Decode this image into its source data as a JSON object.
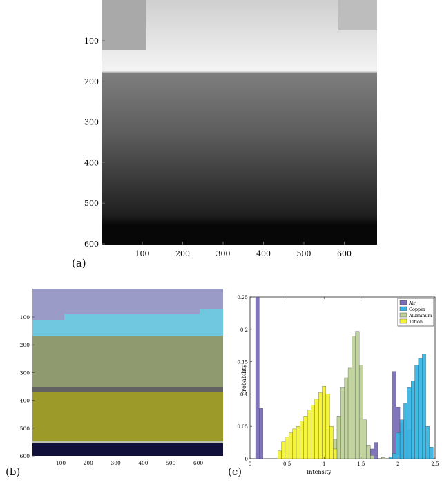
{
  "panel_a": {
    "label": "(a)",
    "y_ticks": [
      "100",
      "200",
      "300",
      "400",
      "500",
      "600"
    ],
    "x_ticks": [
      "100",
      "200",
      "300",
      "400",
      "500",
      "600"
    ]
  },
  "panel_b": {
    "label": "(b)",
    "y_ticks": [
      "100",
      "200",
      "300",
      "400",
      "500",
      "600"
    ],
    "x_ticks": [
      "100",
      "200",
      "300",
      "400",
      "500",
      "600"
    ],
    "colors": {
      "air": "#9b9bc8",
      "copper": "#6fc8e0",
      "aluminum": "#8f9a6e",
      "teflon": "#9c9a28",
      "dark_band": "#626262",
      "bottom": "#10103a"
    }
  },
  "panel_c": {
    "label": "(c)",
    "chart_data": {
      "type": "bar",
      "xlabel": "Intensity",
      "ylabel": "Probability",
      "xlim": [
        0,
        2.5
      ],
      "ylim": [
        0,
        0.25
      ],
      "x_ticks": [
        "0",
        "0.5",
        "1",
        "1.5",
        "2",
        "2.5"
      ],
      "y_ticks": [
        "0",
        "0.05",
        "0.1",
        "0.15",
        "0.2",
        "0.25"
      ],
      "legend_position": "top-right",
      "bin_width": 0.05,
      "series": [
        {
          "name": "Air",
          "color": "#7b6fb8",
          "bins": [
            [
              0.1,
              0.25
            ],
            [
              0.15,
              0.078
            ],
            [
              1.65,
              0.015
            ],
            [
              1.7,
              0.025
            ],
            [
              1.95,
              0.135
            ],
            [
              2.0,
              0.08
            ],
            [
              2.05,
              0.055
            ],
            [
              2.1,
              0.06
            ],
            [
              2.15,
              0.045
            ]
          ]
        },
        {
          "name": "Copper",
          "color": "#39b6e3",
          "bins": [
            [
              1.9,
              0.003
            ],
            [
              1.95,
              0.008
            ],
            [
              2.0,
              0.04
            ],
            [
              2.05,
              0.06
            ],
            [
              2.1,
              0.085
            ],
            [
              2.15,
              0.11
            ],
            [
              2.2,
              0.12
            ],
            [
              2.25,
              0.145
            ],
            [
              2.3,
              0.155
            ],
            [
              2.35,
              0.162
            ],
            [
              2.4,
              0.05
            ],
            [
              2.45,
              0.018
            ]
          ]
        },
        {
          "name": "Aluminum",
          "color": "#bfd39a",
          "bins": [
            [
              1.15,
              0.03
            ],
            [
              1.2,
              0.065
            ],
            [
              1.25,
              0.11
            ],
            [
              1.3,
              0.125
            ],
            [
              1.35,
              0.14
            ],
            [
              1.4,
              0.19
            ],
            [
              1.45,
              0.197
            ],
            [
              1.5,
              0.145
            ],
            [
              1.55,
              0.06
            ],
            [
              1.6,
              0.02
            ],
            [
              1.65,
              0.005
            ],
            [
              1.8,
              0.002
            ]
          ]
        },
        {
          "name": "Teflon",
          "color": "#f5f536",
          "bins": [
            [
              0.4,
              0.012
            ],
            [
              0.45,
              0.026
            ],
            [
              0.5,
              0.034
            ],
            [
              0.55,
              0.04
            ],
            [
              0.6,
              0.046
            ],
            [
              0.65,
              0.05
            ],
            [
              0.7,
              0.058
            ],
            [
              0.75,
              0.065
            ],
            [
              0.8,
              0.075
            ],
            [
              0.85,
              0.083
            ],
            [
              0.9,
              0.092
            ],
            [
              0.95,
              0.102
            ],
            [
              1.0,
              0.112
            ],
            [
              1.05,
              0.1
            ],
            [
              1.1,
              0.05
            ],
            [
              1.15,
              0.015
            ]
          ]
        }
      ]
    }
  }
}
